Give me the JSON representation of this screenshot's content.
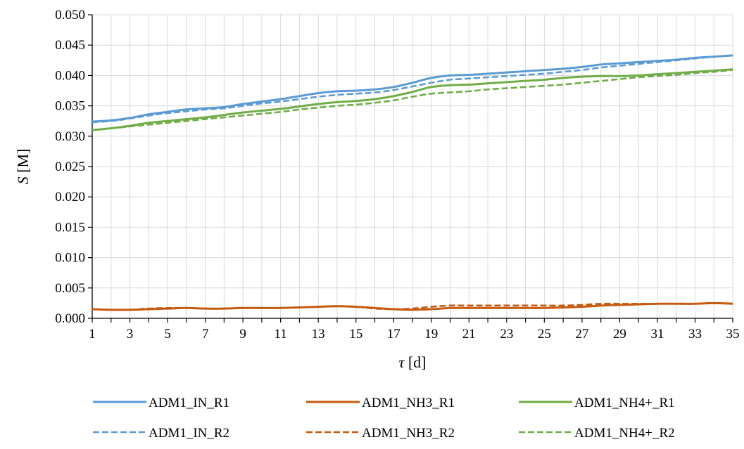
{
  "chart_data": {
    "type": "line",
    "xlabel_symbol": "τ",
    "xlabel_unit": "[d]",
    "ylabel_symbol": "S",
    "ylabel_unit": "[M]",
    "xlim": [
      1,
      35
    ],
    "ylim": [
      0,
      0.05
    ],
    "x_ticks": [
      "1",
      "3",
      "5",
      "7",
      "9",
      "11",
      "13",
      "15",
      "17",
      "19",
      "21",
      "23",
      "25",
      "27",
      "29",
      "31",
      "33",
      "35"
    ],
    "y_ticks": [
      "0.000",
      "0.005",
      "0.010",
      "0.015",
      "0.020",
      "0.025",
      "0.030",
      "0.035",
      "0.040",
      "0.045",
      "0.050"
    ],
    "grid": true,
    "legend_position": "bottom",
    "x": [
      1,
      2,
      3,
      4,
      5,
      6,
      7,
      8,
      9,
      10,
      11,
      12,
      13,
      14,
      15,
      16,
      17,
      18,
      19,
      20,
      21,
      22,
      23,
      24,
      25,
      26,
      27,
      28,
      29,
      30,
      31,
      32,
      33,
      34,
      35
    ],
    "series": [
      {
        "name": "ADM1_IN_R1",
        "color": "#5b9bd5",
        "dash": "solid",
        "values": [
          0.0324,
          0.0326,
          0.033,
          0.0336,
          0.034,
          0.0344,
          0.0346,
          0.0348,
          0.0353,
          0.0357,
          0.0361,
          0.0366,
          0.0371,
          0.0374,
          0.0375,
          0.0377,
          0.0381,
          0.0388,
          0.0396,
          0.04,
          0.0401,
          0.0403,
          0.0405,
          0.0407,
          0.0409,
          0.0411,
          0.0414,
          0.0418,
          0.042,
          0.0422,
          0.0424,
          0.0426,
          0.0429,
          0.0431,
          0.0433
        ]
      },
      {
        "name": "ADM1_IN_R2",
        "color": "#5b9bd5",
        "dash": "dashed",
        "values": [
          0.0323,
          0.0325,
          0.0329,
          0.0334,
          0.0338,
          0.0341,
          0.0344,
          0.0346,
          0.035,
          0.0354,
          0.0357,
          0.0361,
          0.0365,
          0.0368,
          0.037,
          0.0372,
          0.0376,
          0.0382,
          0.0388,
          0.0393,
          0.0395,
          0.0397,
          0.0399,
          0.0401,
          0.0403,
          0.0406,
          0.0409,
          0.0413,
          0.0416,
          0.0419,
          0.0422,
          0.0425,
          0.0428,
          0.0431,
          0.0433
        ]
      },
      {
        "name": "ADM1_NH3_R1",
        "color": "#c55a11",
        "dash": "solid",
        "values": [
          0.0015,
          0.0014,
          0.0014,
          0.0015,
          0.0016,
          0.0017,
          0.0016,
          0.0016,
          0.0017,
          0.0017,
          0.0017,
          0.0018,
          0.0019,
          0.002,
          0.0019,
          0.0017,
          0.0015,
          0.0014,
          0.0015,
          0.0017,
          0.0017,
          0.0017,
          0.0017,
          0.0017,
          0.0017,
          0.0018,
          0.0019,
          0.0021,
          0.0022,
          0.0023,
          0.0024,
          0.0024,
          0.0024,
          0.0025,
          0.0024
        ]
      },
      {
        "name": "ADM1_NH3_R2",
        "color": "#c55a11",
        "dash": "dashed",
        "values": [
          0.0015,
          0.0014,
          0.0014,
          0.0016,
          0.0017,
          0.0017,
          0.0016,
          0.0016,
          0.0017,
          0.0017,
          0.0017,
          0.0018,
          0.0019,
          0.002,
          0.0019,
          0.0016,
          0.0015,
          0.0016,
          0.0019,
          0.0021,
          0.0021,
          0.0021,
          0.0021,
          0.0021,
          0.0021,
          0.0021,
          0.0022,
          0.0024,
          0.0024,
          0.0024,
          0.0024,
          0.0024,
          0.0024,
          0.0025,
          0.0024
        ]
      },
      {
        "name": "ADM1_NH4+_R1",
        "color": "#70ad47",
        "dash": "solid",
        "values": [
          0.031,
          0.0313,
          0.0317,
          0.0322,
          0.0325,
          0.0328,
          0.0331,
          0.0335,
          0.0339,
          0.0342,
          0.0345,
          0.0349,
          0.0353,
          0.0356,
          0.0358,
          0.0361,
          0.0366,
          0.0373,
          0.0381,
          0.0384,
          0.0385,
          0.0387,
          0.0389,
          0.0391,
          0.0393,
          0.0396,
          0.0398,
          0.0399,
          0.0399,
          0.04,
          0.0402,
          0.0404,
          0.0406,
          0.0408,
          0.041
        ]
      },
      {
        "name": "ADM1_NH4+_R2",
        "color": "#70ad47",
        "dash": "dashed",
        "values": [
          0.031,
          0.0313,
          0.0316,
          0.0319,
          0.0322,
          0.0325,
          0.0328,
          0.0331,
          0.0334,
          0.0337,
          0.034,
          0.0344,
          0.0347,
          0.035,
          0.0352,
          0.0355,
          0.0359,
          0.0365,
          0.037,
          0.0372,
          0.0374,
          0.0377,
          0.0379,
          0.0381,
          0.0383,
          0.0385,
          0.0388,
          0.0391,
          0.0394,
          0.0397,
          0.0399,
          0.0401,
          0.0404,
          0.0406,
          0.0409
        ]
      }
    ],
    "legend_order": [
      0,
      2,
      4,
      1,
      3,
      5
    ]
  }
}
